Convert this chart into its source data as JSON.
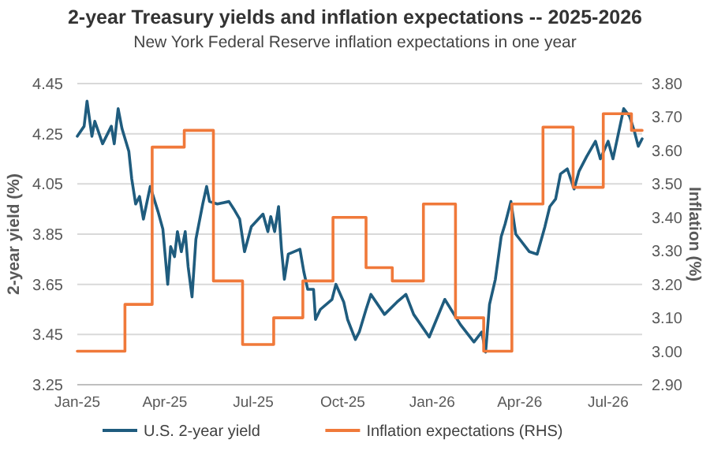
{
  "chart_data": {
    "type": "line",
    "title": "2-year Treasury yields and inflation expectations -- 2025-2026",
    "subtitle": "New York Federal Reserve inflation expectations in one year",
    "ylabel": "2-year yield (%)",
    "y2label": "Inflation (%)",
    "xlim": [
      "2025-01-01",
      "2026-08-05"
    ],
    "xticks": [
      {
        "value": "2025-01-01",
        "label": "Jan-25"
      },
      {
        "value": "2025-04-01",
        "label": "Apr-25"
      },
      {
        "value": "2025-07-01",
        "label": "Jul-25"
      },
      {
        "value": "2025-10-01",
        "label": "Oct-25"
      },
      {
        "value": "2026-01-01",
        "label": "Jan-26"
      },
      {
        "value": "2026-04-01",
        "label": "Apr-26"
      },
      {
        "value": "2026-07-01",
        "label": "Jul-26"
      }
    ],
    "ylim": [
      3.25,
      4.45
    ],
    "yticks": [
      3.25,
      3.45,
      3.65,
      3.85,
      4.05,
      4.25,
      4.45
    ],
    "y2lim": [
      2.9,
      3.8
    ],
    "y2ticks": [
      {
        "value": 2.9,
        "label": "2.90"
      },
      {
        "value": 3.0,
        "label": "3.00"
      },
      {
        "value": 3.1,
        "label": "3.10"
      },
      {
        "value": 3.2,
        "label": "3.20"
      },
      {
        "value": 3.3,
        "label": "3.30"
      },
      {
        "value": 3.4,
        "label": "3.40"
      },
      {
        "value": 3.5,
        "label": "3.50"
      },
      {
        "value": 3.6,
        "label": "3.60"
      },
      {
        "value": 3.7,
        "label": "3.70"
      },
      {
        "value": 3.8,
        "label": "3.80"
      }
    ],
    "grid": "y",
    "legend": "bottom",
    "series": [
      {
        "name": "U.S. 2-year yield",
        "color": "#1f5c7e",
        "type": "line",
        "x": [
          "2025-01-01",
          "2025-01-08",
          "2025-01-11",
          "2025-01-16",
          "2025-01-19",
          "2025-01-27",
          "2025-02-05",
          "2025-02-08",
          "2025-02-12",
          "2025-02-16",
          "2025-02-23",
          "2025-02-26",
          "2025-03-02",
          "2025-03-06",
          "2025-03-10",
          "2025-03-17",
          "2025-03-25",
          "2025-03-30",
          "2025-04-04",
          "2025-04-07",
          "2025-04-11",
          "2025-04-14",
          "2025-04-18",
          "2025-04-22",
          "2025-04-25",
          "2025-04-29",
          "2025-05-03",
          "2025-05-10",
          "2025-05-14",
          "2025-05-17",
          "2025-05-25",
          "2025-06-06",
          "2025-06-11",
          "2025-06-17",
          "2025-06-22",
          "2025-06-29",
          "2025-07-11",
          "2025-07-16",
          "2025-07-19",
          "2025-07-23",
          "2025-07-27",
          "2025-07-30",
          "2025-08-02",
          "2025-08-06",
          "2025-08-18",
          "2025-08-22",
          "2025-08-26",
          "2025-09-01",
          "2025-09-03",
          "2025-09-08",
          "2025-09-20",
          "2025-09-24",
          "2025-10-02",
          "2025-10-06",
          "2025-10-14",
          "2025-10-18",
          "2025-10-25",
          "2025-10-30",
          "2025-11-13",
          "2025-11-26",
          "2025-12-05",
          "2025-12-13",
          "2025-12-29",
          "2026-01-14",
          "2026-01-30",
          "2026-02-13",
          "2026-02-21",
          "2026-02-25",
          "2026-03-01",
          "2026-03-07",
          "2026-03-13",
          "2026-03-17",
          "2026-03-23",
          "2026-03-28",
          "2026-04-11",
          "2026-04-19",
          "2026-04-27",
          "2026-05-02",
          "2026-05-08",
          "2026-05-13",
          "2026-05-20",
          "2026-05-27",
          "2026-06-01",
          "2026-06-09",
          "2026-06-18",
          "2026-06-23",
          "2026-07-01",
          "2026-07-06",
          "2026-07-17",
          "2026-07-23",
          "2026-07-28",
          "2026-08-01",
          "2026-08-05"
        ],
        "values": [
          4.24,
          4.28,
          4.38,
          4.24,
          4.3,
          4.21,
          4.28,
          4.21,
          4.35,
          4.27,
          4.18,
          4.07,
          3.97,
          4.0,
          3.91,
          4.04,
          3.94,
          3.87,
          3.65,
          3.8,
          3.76,
          3.86,
          3.78,
          3.86,
          3.72,
          3.6,
          3.83,
          3.97,
          4.04,
          3.98,
          3.97,
          3.98,
          3.95,
          3.91,
          3.78,
          3.88,
          3.93,
          3.86,
          3.92,
          3.86,
          3.96,
          3.79,
          3.67,
          3.77,
          3.79,
          3.7,
          3.63,
          3.63,
          3.51,
          3.55,
          3.59,
          3.65,
          3.58,
          3.51,
          3.43,
          3.46,
          3.55,
          3.61,
          3.53,
          3.58,
          3.61,
          3.53,
          3.44,
          3.59,
          3.49,
          3.42,
          3.46,
          3.38,
          3.57,
          3.67,
          3.84,
          3.89,
          3.98,
          3.85,
          3.78,
          3.77,
          3.88,
          3.96,
          3.99,
          4.09,
          4.11,
          4.03,
          4.1,
          4.16,
          4.22,
          4.15,
          4.22,
          4.15,
          4.35,
          4.32,
          4.26,
          4.2,
          4.23
        ]
      },
      {
        "name": "Inflation expectations (RHS)",
        "color": "#f0793a",
        "type": "step",
        "axis": "y2",
        "x": [
          "2025-01-01",
          "2025-02-19",
          "2025-03-19",
          "2025-04-21",
          "2025-05-21",
          "2025-06-20",
          "2025-07-22",
          "2025-08-21",
          "2025-09-21",
          "2025-10-25",
          "2025-11-21",
          "2025-12-23",
          "2026-01-25",
          "2026-02-23",
          "2026-03-24",
          "2026-04-25",
          "2026-05-26",
          "2026-06-26",
          "2026-07-25",
          "2026-08-05"
        ],
        "values": [
          3.0,
          3.14,
          3.61,
          3.66,
          3.21,
          3.02,
          3.1,
          3.21,
          3.4,
          3.25,
          3.21,
          3.44,
          3.1,
          3.0,
          3.44,
          3.67,
          3.49,
          3.71,
          3.66,
          3.66
        ]
      }
    ]
  }
}
